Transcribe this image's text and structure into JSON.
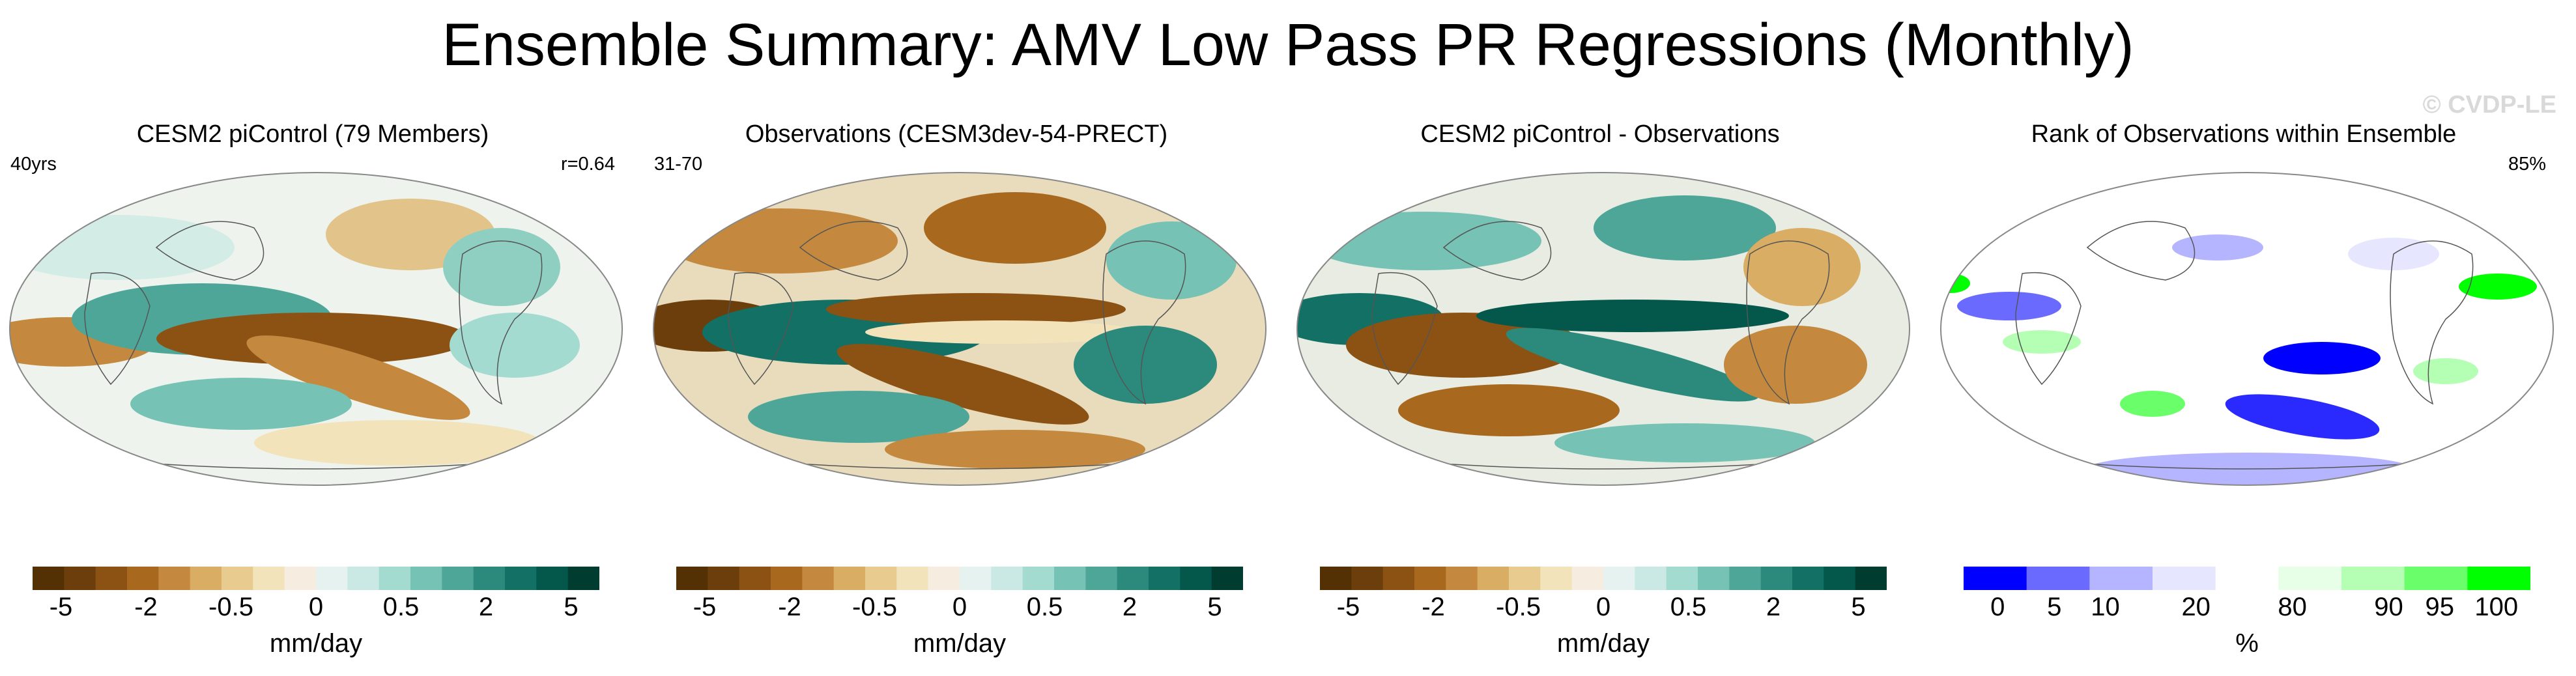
{
  "title": "Ensemble Summary: AMV Low Pass PR Regressions (Monthly)",
  "watermark": "© CVDP-LE",
  "panels": [
    {
      "title": "CESM2 piControl (79 Members)",
      "left_note": "40yrs",
      "right_note": "r=0.64",
      "cbar": "diverging"
    },
    {
      "title": "Observations (CESM3dev-54-PRECT)",
      "left_note": "31-70",
      "right_note": "",
      "cbar": "diverging"
    },
    {
      "title": "CESM2 piControl - Observations",
      "left_note": "",
      "right_note": "",
      "cbar": "diverging"
    },
    {
      "title": "Rank of Observations within Ensemble",
      "left_note": "",
      "right_note": "85%",
      "cbar": "rank"
    }
  ],
  "colorbars": {
    "diverging": {
      "units": "mm/day",
      "colors": [
        "#543005",
        "#6b3e0c",
        "#8c5214",
        "#a8691f",
        "#c4893e",
        "#d9ad63",
        "#e8cc8f",
        "#f3e3bb",
        "#f6ece0",
        "#e5f2f0",
        "#cbe9e4",
        "#a4dbd1",
        "#76c2b4",
        "#4ea699",
        "#2c8a7d",
        "#127064",
        "#03574b",
        "#003c30"
      ],
      "tick_labels": [
        "-5",
        "-2",
        "-0.5",
        "0",
        "0.5",
        "2",
        "5"
      ]
    },
    "rank": {
      "units": "%",
      "colors": [
        "#0000ff",
        "#6a6aff",
        "#b4b4ff",
        "#e6e6ff",
        "#ffffff",
        "#e6ffe6",
        "#b4ffb4",
        "#6aff6a",
        "#00ff00"
      ],
      "tick_labels": [
        "0",
        "5",
        "10",
        "20",
        "80",
        "90",
        "95",
        "100"
      ]
    }
  },
  "chart_data": [
    {
      "type": "heatmap",
      "title": "CESM2 piControl (79 Members)",
      "projection": "robinson",
      "units": "mm/day",
      "levels": [
        -5,
        -4,
        -3,
        -2,
        -1,
        -0.5,
        -0.2,
        0,
        0.2,
        0.5,
        1,
        2,
        3,
        4,
        5
      ],
      "annotations": [
        "40yrs",
        "r=0.64"
      ]
    },
    {
      "type": "heatmap",
      "title": "Observations (CESM3dev-54-PRECT)",
      "projection": "robinson",
      "units": "mm/day",
      "levels": [
        -5,
        -4,
        -3,
        -2,
        -1,
        -0.5,
        -0.2,
        0,
        0.2,
        0.5,
        1,
        2,
        3,
        4,
        5
      ],
      "annotations": [
        "31-70"
      ]
    },
    {
      "type": "heatmap",
      "title": "CESM2 piControl - Observations",
      "projection": "robinson",
      "units": "mm/day",
      "levels": [
        -5,
        -4,
        -3,
        -2,
        -1,
        -0.5,
        -0.2,
        0,
        0.2,
        0.5,
        1,
        2,
        3,
        4,
        5
      ]
    },
    {
      "type": "heatmap",
      "title": "Rank of Observations within Ensemble",
      "projection": "robinson",
      "units": "%",
      "levels": [
        0,
        5,
        10,
        20,
        80,
        90,
        95,
        100
      ],
      "annotations": [
        "85%"
      ]
    }
  ]
}
